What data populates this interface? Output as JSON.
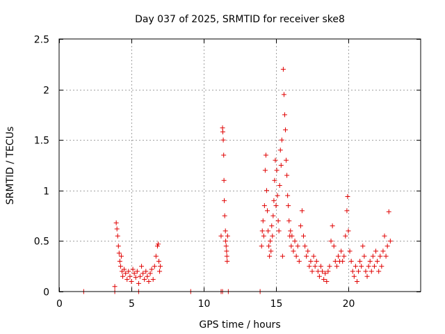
{
  "chart_data": {
    "type": "scatter",
    "title": "Day 037 of 2025, SRMTID for receiver ske8",
    "xlabel": "GPS time / hours",
    "ylabel": "SRMTID / TECUs",
    "xlim": [
      0,
      25
    ],
    "ylim": [
      0,
      2.5
    ],
    "xticks": [
      0,
      5,
      10,
      15,
      20
    ],
    "yticks": [
      0,
      0.5,
      1,
      1.5,
      2,
      2.5
    ],
    "xtick_labels": [
      "0",
      "5",
      "10",
      "15",
      "20"
    ],
    "ytick_labels": [
      "0",
      "0.5",
      "1",
      "1.5",
      "2",
      "2.5"
    ],
    "grid": true,
    "marker": "+",
    "color": "#e00000",
    "series": [
      {
        "name": "SRMTID ske8",
        "points": [
          [
            1.7,
            0.0
          ],
          [
            3.85,
            0.0
          ],
          [
            3.85,
            0.05
          ],
          [
            3.95,
            0.68
          ],
          [
            4.0,
            0.62
          ],
          [
            4.05,
            0.55
          ],
          [
            4.1,
            0.45
          ],
          [
            4.15,
            0.38
          ],
          [
            4.2,
            0.3
          ],
          [
            4.25,
            0.25
          ],
          [
            4.3,
            0.35
          ],
          [
            4.35,
            0.2
          ],
          [
            4.4,
            0.15
          ],
          [
            4.5,
            0.22
          ],
          [
            4.6,
            0.18
          ],
          [
            4.7,
            0.12
          ],
          [
            4.8,
            0.2
          ],
          [
            4.9,
            0.15
          ],
          [
            5.0,
            0.1
          ],
          [
            5.1,
            0.22
          ],
          [
            5.2,
            0.18
          ],
          [
            5.3,
            0.14
          ],
          [
            5.4,
            0.2
          ],
          [
            5.5,
            0.0
          ],
          [
            5.5,
            0.08
          ],
          [
            5.6,
            0.15
          ],
          [
            5.7,
            0.25
          ],
          [
            5.8,
            0.18
          ],
          [
            5.9,
            0.12
          ],
          [
            6.0,
            0.2
          ],
          [
            6.1,
            0.15
          ],
          [
            6.2,
            0.1
          ],
          [
            6.3,
            0.18
          ],
          [
            6.4,
            0.22
          ],
          [
            6.5,
            0.12
          ],
          [
            6.6,
            0.25
          ],
          [
            6.7,
            0.35
          ],
          [
            6.8,
            0.45
          ],
          [
            6.85,
            0.47
          ],
          [
            6.9,
            0.3
          ],
          [
            6.95,
            0.2
          ],
          [
            7.0,
            0.25
          ],
          [
            9.1,
            0.0
          ],
          [
            11.2,
            0.0
          ],
          [
            11.3,
            0.0
          ],
          [
            11.2,
            0.55
          ],
          [
            11.3,
            1.62
          ],
          [
            11.32,
            1.58
          ],
          [
            11.35,
            1.5
          ],
          [
            11.38,
            1.35
          ],
          [
            11.4,
            1.1
          ],
          [
            11.42,
            0.9
          ],
          [
            11.45,
            0.75
          ],
          [
            11.5,
            0.6
          ],
          [
            11.52,
            0.5
          ],
          [
            11.55,
            0.45
          ],
          [
            11.58,
            0.4
          ],
          [
            11.6,
            0.35
          ],
          [
            11.62,
            0.3
          ],
          [
            11.65,
            0.55
          ],
          [
            11.7,
            0.0
          ],
          [
            13.9,
            0.0
          ],
          [
            14.0,
            0.45
          ],
          [
            14.05,
            0.6
          ],
          [
            14.1,
            0.7
          ],
          [
            14.15,
            0.55
          ],
          [
            14.2,
            0.85
          ],
          [
            14.25,
            1.2
          ],
          [
            14.3,
            1.35
          ],
          [
            14.35,
            1.0
          ],
          [
            14.4,
            0.8
          ],
          [
            14.45,
            0.6
          ],
          [
            14.5,
            0.45
          ],
          [
            14.55,
            0.35
          ],
          [
            14.6,
            0.5
          ],
          [
            14.65,
            0.4
          ],
          [
            14.7,
            0.65
          ],
          [
            14.75,
            0.55
          ],
          [
            14.8,
            0.75
          ],
          [
            14.85,
            0.9
          ],
          [
            14.9,
            1.1
          ],
          [
            14.95,
            1.3
          ],
          [
            15.0,
            0.85
          ],
          [
            15.05,
            1.2
          ],
          [
            15.1,
            0.95
          ],
          [
            15.15,
            0.7
          ],
          [
            15.2,
            0.6
          ],
          [
            15.25,
            1.05
          ],
          [
            15.3,
            1.4
          ],
          [
            15.35,
            1.25
          ],
          [
            15.4,
            1.5
          ],
          [
            15.45,
            0.35
          ],
          [
            15.5,
            2.2
          ],
          [
            15.55,
            1.95
          ],
          [
            15.6,
            1.75
          ],
          [
            15.65,
            1.6
          ],
          [
            15.7,
            1.3
          ],
          [
            15.75,
            1.15
          ],
          [
            15.8,
            0.95
          ],
          [
            15.85,
            0.85
          ],
          [
            15.9,
            0.7
          ],
          [
            15.95,
            0.55
          ],
          [
            16.0,
            0.6
          ],
          [
            16.05,
            0.45
          ],
          [
            16.1,
            0.55
          ],
          [
            16.2,
            0.4
          ],
          [
            16.3,
            0.5
          ],
          [
            16.4,
            0.35
          ],
          [
            16.5,
            0.45
          ],
          [
            16.6,
            0.3
          ],
          [
            16.7,
            0.65
          ],
          [
            16.8,
            0.8
          ],
          [
            16.9,
            0.55
          ],
          [
            17.0,
            0.45
          ],
          [
            17.1,
            0.35
          ],
          [
            17.2,
            0.4
          ],
          [
            17.3,
            0.25
          ],
          [
            17.4,
            0.3
          ],
          [
            17.5,
            0.2
          ],
          [
            17.6,
            0.35
          ],
          [
            17.7,
            0.25
          ],
          [
            17.8,
            0.3
          ],
          [
            17.9,
            0.2
          ],
          [
            18.0,
            0.15
          ],
          [
            18.1,
            0.25
          ],
          [
            18.2,
            0.2
          ],
          [
            18.3,
            0.12
          ],
          [
            18.4,
            0.18
          ],
          [
            18.5,
            0.1
          ],
          [
            18.6,
            0.2
          ],
          [
            18.7,
            0.25
          ],
          [
            18.8,
            0.5
          ],
          [
            18.9,
            0.65
          ],
          [
            19.0,
            0.45
          ],
          [
            19.1,
            0.3
          ],
          [
            19.2,
            0.25
          ],
          [
            19.3,
            0.35
          ],
          [
            19.4,
            0.3
          ],
          [
            19.5,
            0.4
          ],
          [
            19.6,
            0.3
          ],
          [
            19.7,
            0.35
          ],
          [
            19.8,
            0.55
          ],
          [
            19.9,
            0.8
          ],
          [
            19.95,
            0.94
          ],
          [
            20.0,
            0.6
          ],
          [
            20.1,
            0.4
          ],
          [
            20.2,
            0.3
          ],
          [
            20.3,
            0.2
          ],
          [
            20.4,
            0.15
          ],
          [
            20.5,
            0.25
          ],
          [
            20.6,
            0.1
          ],
          [
            20.7,
            0.2
          ],
          [
            20.8,
            0.3
          ],
          [
            20.9,
            0.25
          ],
          [
            21.0,
            0.45
          ],
          [
            21.1,
            0.35
          ],
          [
            21.2,
            0.2
          ],
          [
            21.3,
            0.15
          ],
          [
            21.4,
            0.25
          ],
          [
            21.5,
            0.3
          ],
          [
            21.6,
            0.2
          ],
          [
            21.7,
            0.35
          ],
          [
            21.8,
            0.25
          ],
          [
            21.9,
            0.4
          ],
          [
            22.0,
            0.3
          ],
          [
            22.1,
            0.2
          ],
          [
            22.2,
            0.35
          ],
          [
            22.3,
            0.25
          ],
          [
            22.4,
            0.4
          ],
          [
            22.5,
            0.55
          ],
          [
            22.6,
            0.35
          ],
          [
            22.7,
            0.45
          ],
          [
            22.8,
            0.79
          ],
          [
            22.9,
            0.5
          ]
        ]
      }
    ]
  }
}
